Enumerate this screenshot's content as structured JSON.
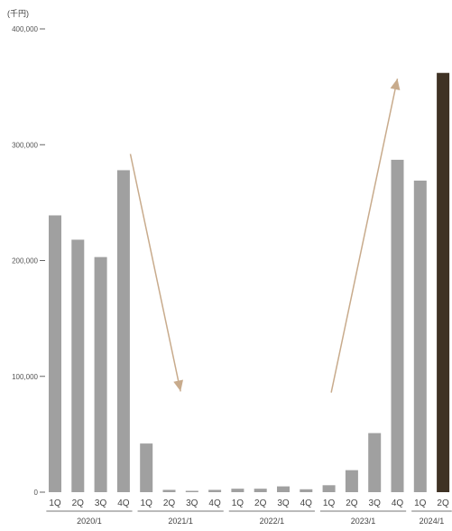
{
  "chart_data": {
    "type": "bar",
    "unit_label": "(千円)",
    "ylim": [
      0,
      400000
    ],
    "yticks": [
      {
        "value": 0,
        "label": "0"
      },
      {
        "value": 100000,
        "label": "100,000"
      },
      {
        "value": 200000,
        "label": "200,000"
      },
      {
        "value": 300000,
        "label": "300,000"
      },
      {
        "value": 400000,
        "label": "400,000"
      }
    ],
    "categories": [
      "1Q",
      "2Q",
      "3Q",
      "4Q",
      "1Q",
      "2Q",
      "3Q",
      "4Q",
      "1Q",
      "2Q",
      "3Q",
      "4Q",
      "1Q",
      "2Q",
      "3Q",
      "4Q",
      "1Q",
      "2Q"
    ],
    "groups": [
      {
        "label": "2020/1",
        "start": 0,
        "count": 4
      },
      {
        "label": "2021/1",
        "start": 4,
        "count": 4
      },
      {
        "label": "2022/1",
        "start": 8,
        "count": 4
      },
      {
        "label": "2023/1",
        "start": 12,
        "count": 4
      },
      {
        "label": "2024/1",
        "start": 16,
        "count": 2
      }
    ],
    "values": [
      239000,
      218000,
      203000,
      278000,
      42000,
      2000,
      1000,
      2000,
      3000,
      3000,
      5000,
      2500,
      6000,
      19000,
      51000,
      287000,
      269000,
      362000
    ],
    "bar_colors": {
      "default": "#a0a0a0",
      "highlight": "#3f3224"
    },
    "highlight_index": 17,
    "arrow_color": "#c8ab8c",
    "arrows": [
      {
        "from": [
          3.3,
          292000
        ],
        "to": [
          5.5,
          87000
        ]
      },
      {
        "from": [
          12.1,
          86000
        ],
        "to": [
          15.0,
          357000
        ]
      }
    ]
  }
}
